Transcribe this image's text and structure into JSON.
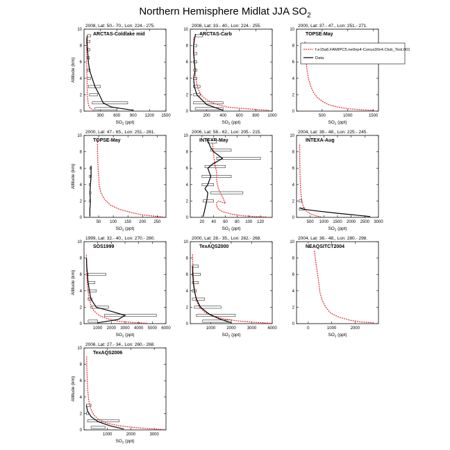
{
  "page_title": "Northern Hemisphere Midlat JJA SO",
  "page_title_sub": "2",
  "legend": {
    "model_label": "f.e15a6.FAMIPC5.ne0np4-Conus30x4.Club_Test.001",
    "data_label": "Data",
    "model_color": "#e8262a",
    "data_color": "#000000"
  },
  "chart_data": [
    {
      "type": "line",
      "panel": "coldlake",
      "header": "2008, Lat: 50.- 70., Lon: 224.- 275.",
      "label": "ARCTAS-Coldlake mid",
      "xlabel": "SO",
      "xlabel_sub": "2",
      "xlabel_unit": " (ppt)",
      "ylabel": "Altitude (km)",
      "xlim": [
        0,
        1500
      ],
      "ylim": [
        0,
        10
      ],
      "xticks": [
        300,
        600,
        900,
        1200,
        1500
      ],
      "yticks": [
        0,
        2,
        4,
        6,
        8,
        10
      ],
      "model": {
        "x": [
          180,
          120,
          90,
          75,
          68,
          62,
          58,
          55,
          52,
          50,
          48,
          46,
          45,
          44
        ],
        "y": [
          0.1,
          0.3,
          0.6,
          1.0,
          1.5,
          2.0,
          3.0,
          4.0,
          5.0,
          6.0,
          7.0,
          8.0,
          8.5,
          9.0
        ]
      },
      "data": {
        "x": [
          900,
          500,
          350,
          280,
          200,
          150,
          100,
          80,
          70,
          65,
          60,
          55,
          55,
          60
        ],
        "y": [
          0.1,
          0.5,
          1.0,
          2.0,
          3.0,
          4.0,
          5.0,
          6.0,
          7.0,
          7.5,
          8.0,
          8.5,
          9.0,
          9.2
        ]
      },
      "boxes": [
        {
          "x1": 60,
          "x2": 120,
          "y": 9.2
        },
        {
          "x1": 50,
          "x2": 110,
          "y": 8.5
        },
        {
          "x1": 55,
          "x2": 110,
          "y": 7.5
        },
        {
          "x1": 55,
          "x2": 100,
          "y": 6.5
        },
        {
          "x1": 60,
          "x2": 110,
          "y": 5.0
        },
        {
          "x1": 60,
          "x2": 120,
          "y": 4.0
        },
        {
          "x1": 80,
          "x2": 300,
          "y": 3.0
        },
        {
          "x1": 100,
          "x2": 250,
          "y": 2.0
        },
        {
          "x1": 150,
          "x2": 800,
          "y": 1.0
        },
        {
          "x1": 200,
          "x2": 600,
          "y": 0.3
        }
      ]
    },
    {
      "type": "line",
      "panel": "carb",
      "header": "2008, Lat: 33.- 40., Lon: 224.- 255.",
      "label": "ARCTAS-Carb",
      "xlabel": "SO",
      "xlabel_sub": "2",
      "xlabel_unit": " (ppt)",
      "ylabel": "",
      "xlim": [
        0,
        1000
      ],
      "ylim": [
        0,
        10
      ],
      "xticks": [
        200,
        400,
        600,
        800,
        1000
      ],
      "yticks": [
        0,
        2,
        4,
        6,
        8,
        10
      ],
      "model": {
        "x": [
          960,
          800,
          600,
          450,
          330,
          250,
          180,
          130,
          100,
          80,
          65,
          55,
          50,
          45,
          42,
          40
        ],
        "y": [
          0.1,
          0.2,
          0.35,
          0.5,
          0.8,
          1.1,
          1.5,
          2.0,
          2.6,
          3.3,
          4.2,
          5.2,
          6.2,
          7.2,
          8.2,
          9.0
        ]
      },
      "data": {
        "x": [
          400,
          200,
          80,
          50,
          40,
          60,
          50,
          40,
          40,
          50,
          55,
          60,
          65
        ],
        "y": [
          0.1,
          0.8,
          2.0,
          3.0,
          4.0,
          5.0,
          6.0,
          7.0,
          8.0,
          8.6,
          9.0,
          9.2,
          9.4
        ]
      },
      "boxes": [
        {
          "x1": 60,
          "x2": 150,
          "y": 9.2
        },
        {
          "x1": 40,
          "x2": 80,
          "y": 8.0
        },
        {
          "x1": 40,
          "x2": 80,
          "y": 7.0
        },
        {
          "x1": 40,
          "x2": 80,
          "y": 6.0
        },
        {
          "x1": 40,
          "x2": 80,
          "y": 5.0
        },
        {
          "x1": 40,
          "x2": 80,
          "y": 4.0
        },
        {
          "x1": 40,
          "x2": 120,
          "y": 3.0
        },
        {
          "x1": 40,
          "x2": 120,
          "y": 2.0
        },
        {
          "x1": 40,
          "x2": 400,
          "y": 1.0
        },
        {
          "x1": 60,
          "x2": 400,
          "y": 0.3
        }
      ]
    },
    {
      "type": "line",
      "panel": "topse1",
      "header": "2000, Lat: 37.- 47., Lon: 251.- 271.",
      "label": "TOPSE-May",
      "xlabel": "SO",
      "xlabel_sub": "2",
      "xlabel_unit": " (ppt)",
      "ylabel": "",
      "xlim": [
        0,
        1600
      ],
      "ylim": [
        0,
        10
      ],
      "xticks": [
        500,
        1000,
        1500
      ],
      "yticks": [
        0,
        2,
        4,
        6,
        8,
        10
      ],
      "model": {
        "x": [
          1500,
          1300,
          1000,
          800,
          620,
          500,
          400,
          330,
          280,
          240,
          210,
          190,
          180,
          170,
          165
        ],
        "y": [
          0.1,
          0.15,
          0.3,
          0.5,
          0.8,
          1.2,
          1.7,
          2.3,
          3.0,
          3.8,
          4.8,
          5.8,
          6.8,
          7.8,
          8.5
        ]
      },
      "data": {
        "x": [],
        "y": []
      },
      "boxes": []
    },
    {
      "type": "line",
      "panel": "topse2",
      "header": "2000, Lat: 47.- 65., Lon: 251.- 281.",
      "label": "TOPSE-May",
      "xlabel": "SO",
      "xlabel_sub": "2",
      "xlabel_unit": " (ppt)",
      "ylabel": "Altitude (km)",
      "xlim": [
        0,
        280
      ],
      "ylim": [
        0,
        10
      ],
      "xticks": [
        50,
        100,
        150,
        200,
        250
      ],
      "yticks": [
        0,
        2,
        4,
        6,
        8,
        10
      ],
      "model": {
        "x": [
          270,
          240,
          200,
          160,
          120,
          90,
          70,
          58,
          52,
          50,
          48,
          47,
          46,
          46,
          46
        ],
        "y": [
          0.05,
          0.15,
          0.3,
          0.6,
          1.0,
          1.5,
          2.2,
          3.0,
          3.8,
          5.0,
          6.0,
          7.0,
          8.0,
          9.0,
          9.5
        ]
      },
      "data": {
        "x": [
          20,
          20,
          22,
          20,
          22,
          24,
          24,
          24
        ],
        "y": [
          0.1,
          1.0,
          2.0,
          3.0,
          4.0,
          5.0,
          6.0,
          6.3
        ]
      },
      "boxes": [
        {
          "x1": 20,
          "x2": 25,
          "y": 6.0
        },
        {
          "x1": 18,
          "x2": 22,
          "y": 5.0
        },
        {
          "x1": 18,
          "x2": 22,
          "y": 4.0
        },
        {
          "x1": 20,
          "x2": 24,
          "y": 3.0
        },
        {
          "x1": 18,
          "x2": 22,
          "y": 2.0
        }
      ]
    },
    {
      "type": "line",
      "panel": "intexb",
      "header": "2006, Lat: 58.- 62., Lon: 205.- 215.",
      "label": "INTEXB-May",
      "xlabel": "SO",
      "xlabel_sub": "2",
      "xlabel_unit": " (ppt)",
      "ylabel": "",
      "xlim": [
        0,
        140
      ],
      "ylim": [
        0,
        10
      ],
      "xticks": [
        20,
        40,
        60,
        80,
        100,
        120
      ],
      "yticks": [
        0,
        2,
        4,
        6,
        8,
        10
      ],
      "model": {
        "x": [
          130,
          110,
          90,
          70,
          55,
          48,
          45,
          45,
          48,
          60,
          55,
          48,
          45,
          45,
          42,
          40,
          38
        ],
        "y": [
          0.05,
          0.1,
          0.2,
          0.4,
          0.7,
          1.0,
          1.4,
          1.8,
          2.0,
          1.7,
          2.5,
          3.5,
          4.5,
          5.5,
          6.5,
          7.5,
          9.0
        ]
      },
      "data": {
        "x": [
          22,
          25,
          28,
          30,
          25,
          30,
          35,
          30,
          38,
          55,
          40,
          35,
          32,
          30,
          28
        ],
        "y": [
          0.1,
          1.0,
          2.0,
          3.0,
          3.5,
          4.0,
          5.0,
          6.0,
          6.5,
          7.2,
          8.0,
          8.5,
          9.0,
          9.3,
          9.5
        ]
      },
      "boxes": [
        {
          "x1": 30,
          "x2": 45,
          "y": 9.2
        },
        {
          "x1": 35,
          "x2": 70,
          "y": 8.2
        },
        {
          "x1": 45,
          "x2": 120,
          "y": 7.2
        },
        {
          "x1": 25,
          "x2": 60,
          "y": 6.2
        },
        {
          "x1": 20,
          "x2": 70,
          "y": 5.0
        },
        {
          "x1": 20,
          "x2": 40,
          "y": 4.0
        },
        {
          "x1": 35,
          "x2": 90,
          "y": 3.0
        },
        {
          "x1": 22,
          "x2": 40,
          "y": 2.0
        }
      ]
    },
    {
      "type": "line",
      "panel": "intexa",
      "header": "2004, Lat: 38.- 48., Lon: 225.- 245.",
      "label": "INTEXA-Aug",
      "xlabel": "SO",
      "xlabel_sub": "2",
      "xlabel_unit": " (ppt)",
      "ylabel": "",
      "xlim": [
        0,
        3000
      ],
      "ylim": [
        0,
        10
      ],
      "xticks": [
        500,
        1000,
        1500,
        2000,
        2500,
        3000
      ],
      "yticks": [
        0,
        2,
        4,
        6,
        8,
        10
      ],
      "model": {
        "x": [
          900,
          700,
          500,
          350,
          250,
          190,
          160,
          140,
          130,
          125,
          120,
          118,
          115
        ],
        "y": [
          0.05,
          0.2,
          0.45,
          0.8,
          1.3,
          2.0,
          3.0,
          4.0,
          5.0,
          6.0,
          7.0,
          8.0,
          9.0
        ]
      },
      "data": {
        "x": [
          2700,
          1500,
          700,
          250,
          150,
          120
        ],
        "y": [
          0.1,
          0.5,
          0.8,
          1.0,
          1.1,
          1.2
        ]
      },
      "boxes": [
        {
          "x1": 100,
          "x2": 300,
          "y": 1.0
        },
        {
          "x1": 100,
          "x2": 200,
          "y": 2.0
        }
      ]
    },
    {
      "type": "line",
      "panel": "sos1999",
      "header": "1999, Lat: 32.- 40., Lon: 270.- 280.",
      "label": "SOS1999",
      "xlabel": "SO",
      "xlabel_sub": "2",
      "xlabel_unit": " (ppt)",
      "ylabel": "Altitude (km)",
      "xlim": [
        0,
        6000
      ],
      "ylim": [
        0,
        10
      ],
      "xticks": [
        1000,
        2000,
        3000,
        4000,
        5000,
        6000
      ],
      "yticks": [
        0,
        2,
        4,
        6,
        8,
        10
      ],
      "model": {
        "x": [
          4600,
          3500,
          2500,
          1700,
          1100,
          700,
          500,
          350,
          280,
          230,
          200,
          180,
          170
        ],
        "y": [
          0.05,
          0.15,
          0.3,
          0.6,
          1.0,
          1.6,
          2.3,
          3.2,
          4.2,
          5.2,
          6.2,
          7.5,
          8.5
        ]
      },
      "data": {
        "x": [
          1000,
          2500,
          3000,
          2000,
          900,
          500,
          400,
          300,
          250,
          200,
          180
        ],
        "y": [
          0.1,
          0.5,
          1.0,
          1.5,
          2.0,
          3.0,
          4.0,
          5.0,
          6.0,
          7.0,
          8.0
        ]
      },
      "boxes": [
        {
          "x1": 300,
          "x2": 1600,
          "y": 6.0
        },
        {
          "x1": 300,
          "x2": 800,
          "y": 5.0
        },
        {
          "x1": 300,
          "x2": 900,
          "y": 4.0
        },
        {
          "x1": 300,
          "x2": 600,
          "y": 3.0
        },
        {
          "x1": 500,
          "x2": 1800,
          "y": 2.0
        },
        {
          "x1": 1500,
          "x2": 5300,
          "y": 1.0
        },
        {
          "x1": 300,
          "x2": 1000,
          "y": 0.3
        }
      ]
    },
    {
      "type": "line",
      "panel": "texaqs2000",
      "header": "2000, Lat: 28.- 35., Lon: 262.- 268.",
      "label": "TexAQS2000",
      "xlabel": "SO",
      "xlabel_sub": "2",
      "xlabel_unit": " (ppt)",
      "ylabel": "",
      "xlim": [
        0,
        4000
      ],
      "ylim": [
        0,
        10
      ],
      "xticks": [
        1000,
        2000,
        3000,
        4000
      ],
      "yticks": [
        0,
        2,
        4,
        6,
        8,
        10
      ],
      "model": {
        "x": [
          3900,
          3200,
          2400,
          1700,
          1100,
          700,
          450,
          300,
          220,
          170,
          140,
          120,
          110
        ],
        "y": [
          0.05,
          0.15,
          0.3,
          0.55,
          0.9,
          1.4,
          2.0,
          2.8,
          3.8,
          5.0,
          6.2,
          7.5,
          8.5
        ]
      },
      "data": {
        "x": [
          2000,
          1400,
          900,
          500,
          300,
          200,
          150,
          120,
          110
        ],
        "y": [
          0.1,
          0.6,
          1.2,
          2.0,
          3.0,
          4.0,
          5.0,
          6.0,
          7.0
        ]
      },
      "boxes": [
        {
          "x1": 100,
          "x2": 400,
          "y": 7.0
        },
        {
          "x1": 100,
          "x2": 500,
          "y": 6.0
        },
        {
          "x1": 100,
          "x2": 400,
          "y": 5.0
        },
        {
          "x1": 100,
          "x2": 300,
          "y": 4.0
        },
        {
          "x1": 100,
          "x2": 700,
          "y": 3.0
        },
        {
          "x1": 200,
          "x2": 1500,
          "y": 2.0
        },
        {
          "x1": 300,
          "x2": 2200,
          "y": 1.0
        },
        {
          "x1": 600,
          "x2": 2000,
          "y": 0.3
        }
      ]
    },
    {
      "type": "line",
      "panel": "neaqs",
      "header": "2004, Lat: 38.- 48., Lon: 280.- 298.",
      "label": "NEAQSITCT2004",
      "xlabel": "SO",
      "xlabel_sub": "2",
      "xlabel_unit": " (ppt)",
      "ylabel": "",
      "xlim": [
        -500,
        3000
      ],
      "ylim": [
        0,
        10
      ],
      "xticks": [
        0,
        1000,
        2000
      ],
      "yticks": [
        0,
        2,
        4,
        6,
        8,
        10
      ],
      "model": {
        "x": [
          2800,
          2300,
          1800,
          1300,
          950,
          750,
          600,
          500,
          450,
          400,
          350,
          300,
          270
        ],
        "y": [
          0.1,
          0.2,
          0.4,
          0.8,
          1.3,
          2.0,
          2.8,
          3.8,
          5.0,
          6.0,
          7.0,
          8.0,
          9.0
        ]
      },
      "data": {
        "x": [],
        "y": []
      },
      "boxes": []
    },
    {
      "type": "line",
      "panel": "texaqs2006",
      "header": "2006, Lat: 27.- 34., Lon: 260.- 268.",
      "label": "TexAQS2006",
      "xlabel": "SO",
      "xlabel_sub": "2",
      "xlabel_unit": " (ppt)",
      "ylabel": "Altitude (km)",
      "xlim": [
        0,
        3500
      ],
      "ylim": [
        0,
        10
      ],
      "xticks": [
        1000,
        2000,
        3000
      ],
      "yticks": [
        0,
        2,
        4,
        6,
        8,
        10
      ],
      "model": {
        "x": [
          3400,
          2800,
          2100,
          1500,
          1000,
          650,
          420,
          280,
          200,
          160,
          140,
          120,
          110
        ],
        "y": [
          0.05,
          0.15,
          0.3,
          0.5,
          0.8,
          1.2,
          1.8,
          2.6,
          3.6,
          4.8,
          6.0,
          7.5,
          9.0
        ]
      },
      "data": {
        "x": [
          1700,
          1100,
          600,
          300,
          150,
          100
        ],
        "y": [
          0.1,
          0.5,
          1.0,
          1.6,
          2.3,
          3.0
        ]
      },
      "boxes": [
        {
          "x1": 100,
          "x2": 300,
          "y": 3.0
        },
        {
          "x1": 100,
          "x2": 200,
          "y": 2.0
        },
        {
          "x1": 150,
          "x2": 1500,
          "y": 1.1
        },
        {
          "x1": 300,
          "x2": 900,
          "y": 0.3
        }
      ]
    }
  ]
}
